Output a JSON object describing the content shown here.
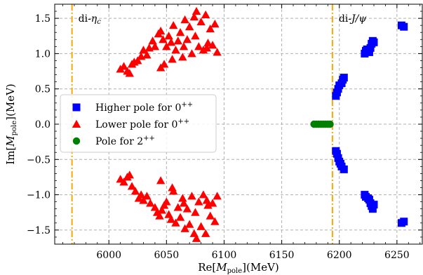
{
  "chart_data": {
    "type": "scatter",
    "xlabel": "Re[M_pole](MeV)",
    "ylabel": "Im[M_pole](MeV)",
    "xlim": [
      5953,
      6272
    ],
    "ylim": [
      -1.7,
      1.7
    ],
    "xticks": [
      6000,
      6050,
      6100,
      6150,
      6200,
      6250
    ],
    "yticks": [
      -1.5,
      -1.0,
      -0.5,
      0.0,
      0.5,
      1.0,
      1.5
    ],
    "xtick_labels": [
      "6000",
      "6050",
      "6100",
      "6150",
      "6200",
      "6250"
    ],
    "ytick_labels": [
      "−1.5",
      "−1.0",
      "−0.5",
      "0.0",
      "0.5",
      "1.0",
      "1.5"
    ],
    "grid": true,
    "legend_position": "center-left",
    "annotations": [
      {
        "label": "di-ηc",
        "x": 5968,
        "y": 1.5
      },
      {
        "label": "di-J/ψ",
        "x": 6194,
        "y": 1.5
      }
    ],
    "vlines": [
      {
        "x": 5968,
        "color": "#FFA500"
      },
      {
        "x": 6194,
        "color": "#FFA500"
      }
    ],
    "series": [
      {
        "name": "Higher pole for 0⁺⁺",
        "marker": "square",
        "color": "#0000FF",
        "points": [
          [
            6197,
            0.4
          ],
          [
            6198,
            0.45
          ],
          [
            6199,
            0.5
          ],
          [
            6200,
            0.55
          ],
          [
            6202,
            0.58
          ],
          [
            6203,
            0.63
          ],
          [
            6204,
            0.66
          ],
          [
            6222,
            1.0
          ],
          [
            6223,
            1.04
          ],
          [
            6224,
            1.06
          ],
          [
            6226,
            1.02
          ],
          [
            6227,
            1.08
          ],
          [
            6228,
            1.14
          ],
          [
            6229,
            1.18
          ],
          [
            6230,
            1.16
          ],
          [
            6254,
            1.4
          ],
          [
            6256,
            1.38
          ],
          [
            6197,
            -0.38
          ],
          [
            6198,
            -0.42
          ],
          [
            6199,
            -0.48
          ],
          [
            6200,
            -0.53
          ],
          [
            6201,
            -0.56
          ],
          [
            6202,
            -0.6
          ],
          [
            6204,
            -0.64
          ],
          [
            6222,
            -1.0
          ],
          [
            6223,
            -1.03
          ],
          [
            6225,
            -1.05
          ],
          [
            6226,
            -1.07
          ],
          [
            6227,
            -1.12
          ],
          [
            6228,
            -1.16
          ],
          [
            6229,
            -1.2
          ],
          [
            6230,
            -1.14
          ],
          [
            6254,
            -1.4
          ],
          [
            6256,
            -1.38
          ]
        ]
      },
      {
        "name": "Lower pole for 0⁺⁺",
        "marker": "triangle",
        "color": "#FF0000",
        "points": [
          [
            6010,
            0.78
          ],
          [
            6013,
            0.82
          ],
          [
            6016,
            0.75
          ],
          [
            6018,
            0.72
          ],
          [
            6020,
            0.85
          ],
          [
            6022,
            0.88
          ],
          [
            6025,
            0.9
          ],
          [
            6028,
            0.96
          ],
          [
            6030,
            1.05
          ],
          [
            6033,
            0.98
          ],
          [
            6035,
            1.08
          ],
          [
            6038,
            1.18
          ],
          [
            6040,
            1.1
          ],
          [
            6043,
            1.28
          ],
          [
            6045,
            1.32
          ],
          [
            6047,
            1.2
          ],
          [
            6050,
            1.1
          ],
          [
            6052,
            1.25
          ],
          [
            6054,
            1.16
          ],
          [
            6056,
            1.4
          ],
          [
            6058,
            1.05
          ],
          [
            6060,
            1.18
          ],
          [
            6062,
            1.3
          ],
          [
            6064,
            0.95
          ],
          [
            6066,
            1.48
          ],
          [
            6068,
            1.2
          ],
          [
            6070,
            1.38
          ],
          [
            6072,
            1.0
          ],
          [
            6074,
            1.52
          ],
          [
            6076,
            1.6
          ],
          [
            6078,
            1.1
          ],
          [
            6080,
            1.45
          ],
          [
            6082,
            1.05
          ],
          [
            6084,
            1.55
          ],
          [
            6086,
            1.15
          ],
          [
            6088,
            1.35
          ],
          [
            6090,
            1.12
          ],
          [
            6092,
            1.42
          ],
          [
            6094,
            1.02
          ],
          [
            6048,
            0.85
          ],
          [
            6045,
            0.8
          ],
          [
            6055,
            0.92
          ],
          [
            6065,
            1.1
          ],
          [
            6075,
            1.25
          ],
          [
            6085,
            1.08
          ],
          [
            6010,
            -0.78
          ],
          [
            6013,
            -0.82
          ],
          [
            6016,
            -0.75
          ],
          [
            6018,
            -0.72
          ],
          [
            6020,
            -0.88
          ],
          [
            6023,
            -0.95
          ],
          [
            6026,
            -1.05
          ],
          [
            6028,
            -1.0
          ],
          [
            6030,
            -1.08
          ],
          [
            6033,
            -1.02
          ],
          [
            6036,
            -1.12
          ],
          [
            6040,
            -1.18
          ],
          [
            6042,
            -1.25
          ],
          [
            6044,
            -1.3
          ],
          [
            6046,
            -1.22
          ],
          [
            6048,
            -1.15
          ],
          [
            6050,
            -1.1
          ],
          [
            6052,
            -1.28
          ],
          [
            6054,
            -1.35
          ],
          [
            6056,
            -0.95
          ],
          [
            6058,
            -1.4
          ],
          [
            6060,
            -1.18
          ],
          [
            6062,
            -1.32
          ],
          [
            6064,
            -1.05
          ],
          [
            6066,
            -1.48
          ],
          [
            6068,
            -1.2
          ],
          [
            6070,
            -1.42
          ],
          [
            6072,
            -1.02
          ],
          [
            6074,
            -1.55
          ],
          [
            6076,
            -1.62
          ],
          [
            6078,
            -1.1
          ],
          [
            6080,
            -1.45
          ],
          [
            6082,
            -1.0
          ],
          [
            6084,
            -1.55
          ],
          [
            6086,
            -1.15
          ],
          [
            6088,
            -1.3
          ],
          [
            6090,
            -1.12
          ],
          [
            6092,
            -1.38
          ],
          [
            6094,
            -1.02
          ],
          [
            6045,
            -0.8
          ],
          [
            6055,
            -0.9
          ],
          [
            6065,
            -1.12
          ],
          [
            6075,
            -1.25
          ],
          [
            6085,
            -1.08
          ]
        ]
      },
      {
        "name": "Pole for 2⁺⁺",
        "marker": "circle",
        "color": "#008000",
        "points": [
          [
            6178,
            0.0
          ],
          [
            6180,
            0.0
          ],
          [
            6182,
            0.0
          ],
          [
            6184,
            0.0
          ],
          [
            6186,
            0.0
          ],
          [
            6188,
            0.0
          ],
          [
            6190,
            0.0
          ],
          [
            6192,
            0.0
          ]
        ]
      }
    ]
  }
}
